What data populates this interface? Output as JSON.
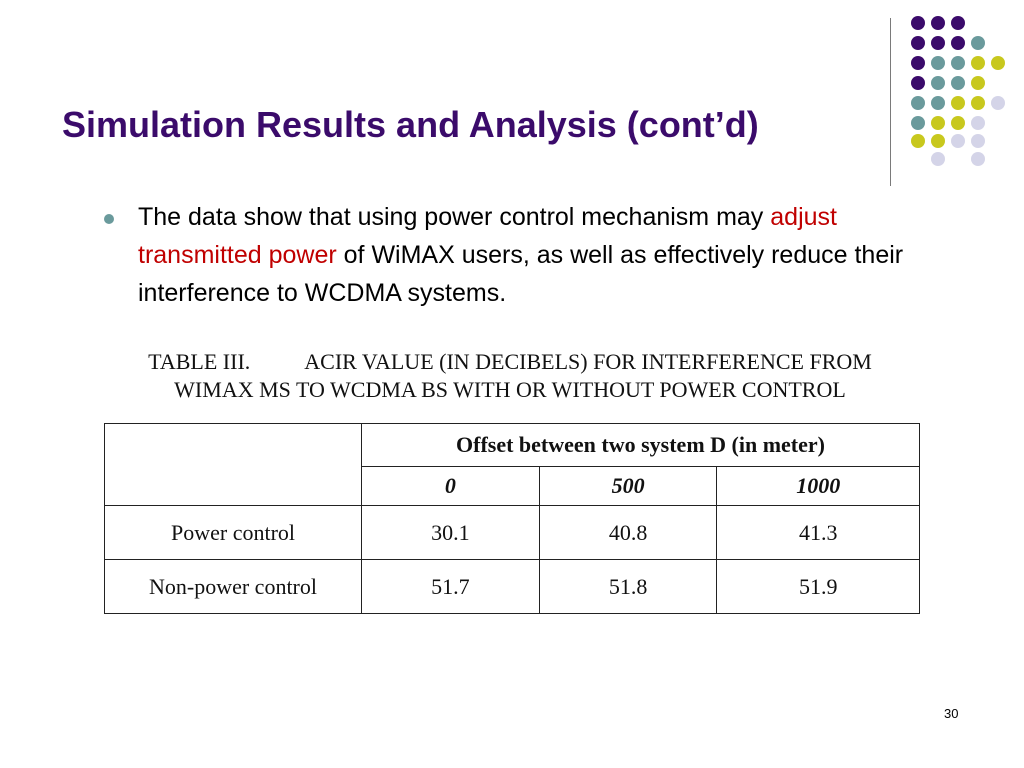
{
  "slide": {
    "title": "Simulation Results and Analysis (cont’d)",
    "bullet": {
      "text_before": "The data show that using power control mechanism may ",
      "highlight": "adjust transmitted power",
      "text_after": " of WiMAX users, as well as effectively reduce their interference to WCDMA systems."
    },
    "page_number": "30",
    "colors": {
      "title": "#3b0b6b",
      "highlight": "#c00000",
      "dot_purple": "#3b0b6b",
      "dot_teal": "#6a9a9c",
      "dot_yellow": "#c8c81e",
      "dot_lavender": "#d4d4e8"
    }
  },
  "table": {
    "caption_line1_a": "TABLE III.",
    "caption_line1_b": "ACIR VALUE (IN DECIBELS) FOR INTERFERENCE FROM",
    "caption_line2": "WIMAX MS TO WCDMA BS WITH OR WITHOUT POWER CONTROL",
    "header_group": "Offset between two system D (in meter)",
    "columns": [
      "0",
      "500",
      "1000"
    ],
    "rows": [
      {
        "label": "Power control",
        "values": [
          "30.1",
          "40.8",
          "41.3"
        ]
      },
      {
        "label": "Non-power control",
        "values": [
          "51.7",
          "51.8",
          "51.9"
        ]
      }
    ]
  }
}
